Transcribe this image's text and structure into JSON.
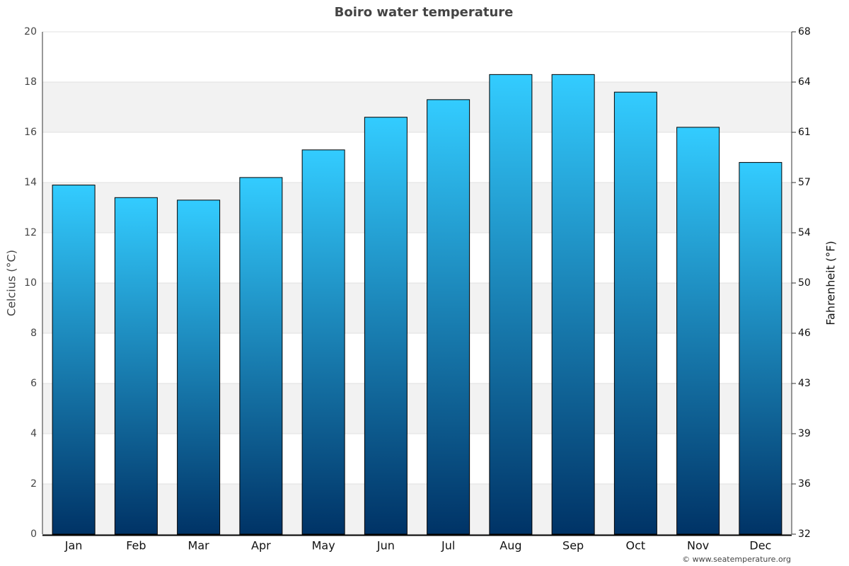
{
  "chart_data": {
    "type": "bar",
    "title": "Boiro water temperature",
    "ylabel": "Celcius (°C)",
    "y2label": "Fahrenheit (°F)",
    "credit": "© www.seatemperature.org",
    "categories": [
      "Jan",
      "Feb",
      "Mar",
      "Apr",
      "May",
      "Jun",
      "Jul",
      "Aug",
      "Sep",
      "Oct",
      "Nov",
      "Dec"
    ],
    "values": [
      13.9,
      13.4,
      13.3,
      14.2,
      15.3,
      16.6,
      17.3,
      18.3,
      18.3,
      17.6,
      16.2,
      14.8
    ],
    "color": [
      "#33ccff",
      "#003366"
    ],
    "ylim": [
      0,
      20
    ],
    "yticks": [
      0,
      2,
      4,
      6,
      8,
      10,
      12,
      14,
      16,
      18,
      20
    ],
    "y2lim": [
      32,
      68
    ],
    "y2ticks": [
      32,
      {
        "value": 35.6,
        "label": "36"
      },
      {
        "value": 39.2,
        "label": "39"
      },
      {
        "value": 42.8,
        "label": "43"
      },
      {
        "value": 46.4,
        "label": "46"
      },
      50,
      {
        "value": 53.6,
        "label": "54"
      },
      {
        "value": 57.2,
        "label": "57"
      },
      {
        "value": 60.8,
        "label": "61"
      },
      {
        "value": 64.4,
        "label": "64"
      },
      68
    ],
    "grid": true
  }
}
